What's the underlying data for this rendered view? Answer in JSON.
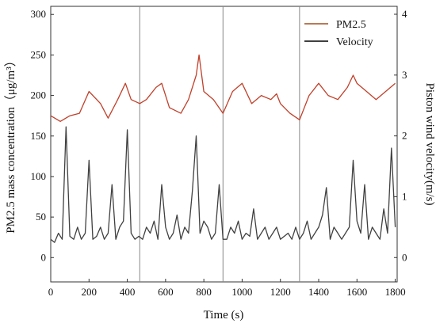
{
  "chart_data": {
    "type": "line",
    "xlabel": "Time (s)",
    "ylabel_left": "PM2.5 mass concentration（μg/m³）",
    "ylabel_right": "Piston wind velocity(m/s)",
    "xlim": [
      0,
      1810
    ],
    "ylim_left": [
      -30,
      310
    ],
    "ylim_right": [
      -0.4,
      4.13
    ],
    "x_ticks": [
      "0",
      "200",
      "400",
      "600",
      "800",
      "1000",
      "1200",
      "1400",
      "1600",
      "1800"
    ],
    "y_ticks_left": [
      "0",
      "50",
      "100",
      "150",
      "200",
      "250",
      "300"
    ],
    "y_ticks_right": [
      "0",
      "1",
      "2",
      "3",
      "4"
    ],
    "vertical_lines_x": [
      465,
      900,
      1300
    ],
    "legend_position": "top-right",
    "series": [
      {
        "name": "PM2.5",
        "axis": "left",
        "color": "#c0402a",
        "x": [
          0,
          50,
          100,
          150,
          200,
          260,
          300,
          350,
          390,
          420,
          465,
          500,
          550,
          580,
          620,
          680,
          720,
          760,
          775,
          800,
          850,
          900,
          950,
          1000,
          1050,
          1100,
          1150,
          1180,
          1200,
          1250,
          1300,
          1350,
          1400,
          1450,
          1500,
          1550,
          1580,
          1600,
          1650,
          1700,
          1750,
          1800
        ],
        "values": [
          175,
          168,
          175,
          178,
          205,
          190,
          172,
          195,
          215,
          195,
          190,
          195,
          210,
          215,
          185,
          178,
          195,
          225,
          250,
          205,
          195,
          178,
          205,
          215,
          190,
          200,
          195,
          202,
          190,
          178,
          170,
          200,
          215,
          200,
          195,
          210,
          225,
          215,
          205,
          195,
          205,
          215
        ]
      },
      {
        "name": "Velocity",
        "axis": "right",
        "color": "#404040",
        "x": [
          0,
          20,
          40,
          60,
          80,
          100,
          120,
          140,
          160,
          180,
          200,
          220,
          240,
          260,
          280,
          300,
          320,
          340,
          360,
          380,
          400,
          420,
          440,
          460,
          480,
          500,
          520,
          540,
          560,
          580,
          600,
          620,
          640,
          660,
          680,
          700,
          720,
          740,
          760,
          780,
          800,
          820,
          840,
          860,
          880,
          900,
          920,
          940,
          960,
          980,
          1000,
          1020,
          1040,
          1060,
          1080,
          1100,
          1120,
          1140,
          1160,
          1180,
          1200,
          1220,
          1240,
          1260,
          1280,
          1300,
          1320,
          1340,
          1360,
          1380,
          1400,
          1420,
          1440,
          1460,
          1480,
          1500,
          1520,
          1540,
          1560,
          1580,
          1600,
          1620,
          1640,
          1660,
          1680,
          1700,
          1720,
          1740,
          1760,
          1780,
          1800
        ],
        "values": [
          0.3,
          0.25,
          0.4,
          0.3,
          2.15,
          0.35,
          0.3,
          0.5,
          0.3,
          0.4,
          1.6,
          0.3,
          0.35,
          0.5,
          0.3,
          0.4,
          1.2,
          0.3,
          0.5,
          0.6,
          2.1,
          0.4,
          0.3,
          0.35,
          0.3,
          0.5,
          0.4,
          0.6,
          0.3,
          1.2,
          0.5,
          0.3,
          0.4,
          0.7,
          0.3,
          0.5,
          0.4,
          1.1,
          2.0,
          0.4,
          0.6,
          0.5,
          0.3,
          0.4,
          1.2,
          0.3,
          0.3,
          0.5,
          0.4,
          0.6,
          0.3,
          0.4,
          0.35,
          0.8,
          0.3,
          0.4,
          0.5,
          0.3,
          0.4,
          0.5,
          0.3,
          0.35,
          0.4,
          0.3,
          0.5,
          0.3,
          0.4,
          0.6,
          0.3,
          0.4,
          0.5,
          0.7,
          1.15,
          0.3,
          0.5,
          0.4,
          0.3,
          0.4,
          0.5,
          1.6,
          0.6,
          0.4,
          1.2,
          0.3,
          0.5,
          0.4,
          0.3,
          0.8,
          0.4,
          1.8,
          0.5
        ]
      }
    ]
  }
}
